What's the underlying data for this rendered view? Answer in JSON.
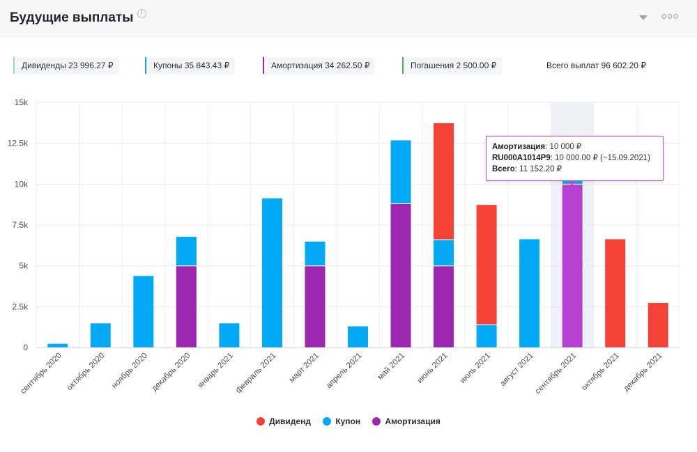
{
  "header": {
    "title": "Будущие выплаты",
    "info_icon": "i",
    "more_icon": "ooo"
  },
  "summary": {
    "dividends": "Дивиденды 23 996.27 ₽",
    "coupons": "Купоны 35 843.43 ₽",
    "amortization": "Амортизация 34 262.50 ₽",
    "redemptions": "Погашения 2 500.00 ₽",
    "total": "Всего выплат 96 602.20 ₽"
  },
  "colors": {
    "dividend": "#f44336",
    "coupon": "#03a9f4",
    "amortization": "#9c27b0",
    "amortization_hover": "#b540d1",
    "redemption": "#4caf50",
    "dividends_chip": "#9ad9c6"
  },
  "tooltip": {
    "line1_label": "Амортизация",
    "line1_value": ": 10 000 ₽",
    "line2_label": "RU000A1014P9",
    "line2_value": ": 10 000.00 ₽ (~15.09.2021)",
    "line3_label": "Всего",
    "line3_value": ": 11 152.20 ₽"
  },
  "chart_data": {
    "type": "bar",
    "stacked": true,
    "title": "Будущие выплаты",
    "categories": [
      "сентябрь 2020",
      "октябрь 2020",
      "ноябрь 2020",
      "декабрь 2020",
      "январь 2021",
      "февраль 2021",
      "март 2021",
      "апрель 2021",
      "май 2021",
      "июнь 2021",
      "июль 2021",
      "август 2021",
      "сентябрь 2021",
      "октябрь 2021",
      "декабрь 2021"
    ],
    "series": [
      {
        "name": "Амортизация",
        "key": "amortization",
        "values": [
          0,
          0,
          0,
          5000,
          0,
          0,
          5000,
          0,
          8800,
          5000,
          0,
          0,
          10000,
          0,
          0
        ]
      },
      {
        "name": "Купон",
        "key": "coupon",
        "values": [
          250,
          1500,
          4400,
          1800,
          1500,
          9150,
          1500,
          1320,
          3900,
          1600,
          1400,
          6650,
          1152.2,
          0,
          0
        ]
      },
      {
        "name": "Дивиденд",
        "key": "dividend",
        "values": [
          0,
          0,
          0,
          0,
          0,
          0,
          0,
          0,
          0,
          7150,
          7350,
          0,
          0,
          6650,
          2750
        ]
      }
    ],
    "ylim": [
      0,
      15000
    ],
    "yticks": [
      0,
      2500,
      5000,
      7500,
      10000,
      12500,
      15000
    ],
    "ytick_labels": [
      "0",
      "2.5k",
      "5k",
      "7.5k",
      "10k",
      "12.5k",
      "15k"
    ],
    "highlighted_category": "сентябрь 2021",
    "legend": [
      {
        "name": "Дивиденд",
        "key": "dividend"
      },
      {
        "name": "Купон",
        "key": "coupon"
      },
      {
        "name": "Амортизация",
        "key": "amortization"
      }
    ],
    "legend_position": "bottom-center",
    "grid": true
  }
}
